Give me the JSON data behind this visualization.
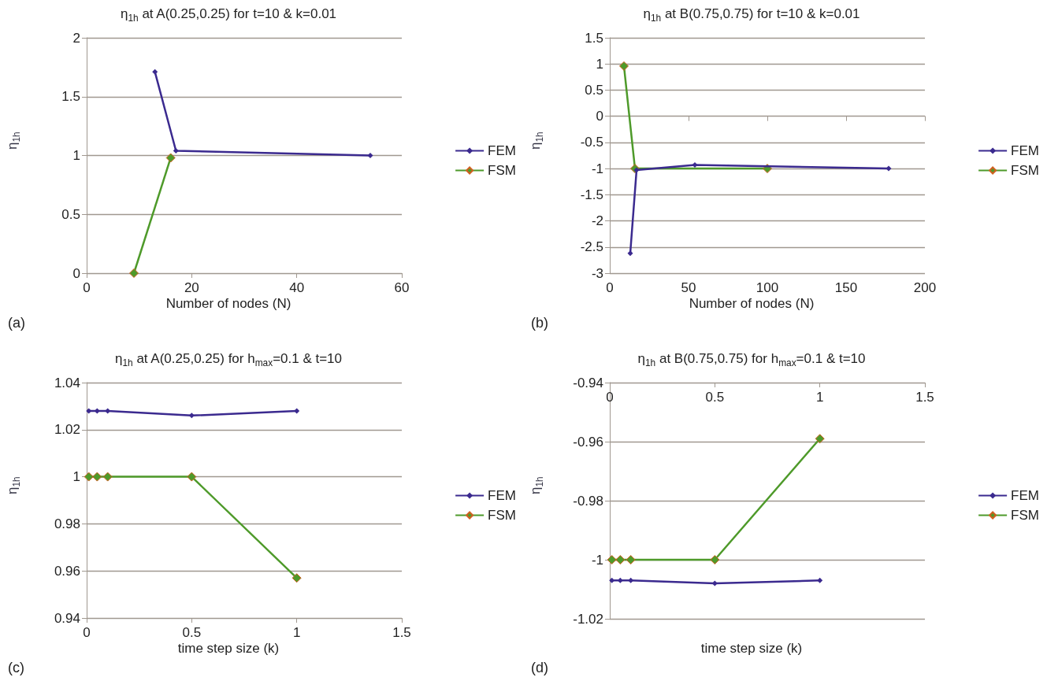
{
  "chart_data": [
    {
      "type": "line",
      "title": "η$_{1h}$ at A(0.25,0.25) for t=10 & k=0.01",
      "xlabel": "Number of nodes (N)",
      "ylabel": "η$_{1h}$",
      "annotations": [
        "(a)"
      ],
      "xlim": [
        0,
        60
      ],
      "xticks": [
        0,
        20,
        40,
        60
      ],
      "ylim": [
        0,
        2
      ],
      "yticks": [
        0,
        0.5,
        1,
        1.5,
        2
      ],
      "grid": "y",
      "legend": "right",
      "marker": "diamond",
      "series": [
        {
          "name": "FEM",
          "color": "#3b2a8f",
          "x": [
            13,
            17,
            54
          ],
          "values": [
            1.71,
            1.04,
            1.0
          ]
        },
        {
          "name": "FSM",
          "color": "#4e9a2a",
          "x": [
            9,
            16
          ],
          "values": [
            0,
            0.98
          ]
        }
      ]
    },
    {
      "type": "line",
      "title": "η$_{1h}$ at B(0.75,0.75) for t=10 & k=0.01",
      "xlabel": "Number of nodes (N)",
      "ylabel": "η$_{1h}$",
      "annotations": [
        "(b)"
      ],
      "xlim": [
        0,
        200
      ],
      "xticks": [
        0,
        50,
        100,
        150,
        200
      ],
      "ylim": [
        -3,
        1.5
      ],
      "yticks": [
        -3,
        -2.5,
        -2,
        -1.5,
        -1,
        -0.5,
        0,
        0.5,
        1,
        1.5
      ],
      "grid": "y",
      "legend": "right",
      "marker": "diamond",
      "series": [
        {
          "name": "FEM",
          "color": "#3b2a8f",
          "x": [
            13,
            17,
            54,
            177
          ],
          "values": [
            -2.62,
            -1.03,
            -0.93,
            -1.0
          ]
        },
        {
          "name": "FSM",
          "color": "#4e9a2a",
          "x": [
            9,
            16,
            100
          ],
          "values": [
            0.96,
            -1.0,
            -1.0
          ]
        }
      ]
    },
    {
      "type": "line",
      "title": "η$_{1h}$ at A(0.25,0.25) for h$_{max}$=0.1 & t=10",
      "xlabel": "time step size (k)",
      "ylabel": "η$_{1h}$",
      "annotations": [
        "(c)"
      ],
      "xlim": [
        0,
        1.5
      ],
      "xticks": [
        0,
        0.5,
        1,
        1.5
      ],
      "ylim": [
        0.94,
        1.04
      ],
      "yticks": [
        0.94,
        0.96,
        0.98,
        1,
        1.02,
        1.04
      ],
      "grid": "y",
      "legend": "right",
      "marker": "diamond",
      "series": [
        {
          "name": "FEM",
          "color": "#3b2a8f",
          "x": [
            0.01,
            0.05,
            0.1,
            0.5,
            1
          ],
          "values": [
            1.028,
            1.028,
            1.028,
            1.026,
            1.028
          ]
        },
        {
          "name": "FSM",
          "color": "#4e9a2a",
          "x": [
            0.01,
            0.05,
            0.1,
            0.5,
            1
          ],
          "values": [
            1.0,
            1.0,
            1.0,
            1.0,
            0.957
          ]
        }
      ]
    },
    {
      "type": "line",
      "title": "η$_{1h}$ at B(0.75,0.75) for h$_{max}$=0.1 & t=10",
      "xlabel": "time step size (k)",
      "ylabel": "η$_{1h}$",
      "annotations": [
        "(d)"
      ],
      "xlim": [
        0,
        1.5
      ],
      "xticks": [
        0,
        0.5,
        1,
        1.5
      ],
      "ylim": [
        -1.02,
        -0.94
      ],
      "yticks": [
        -1.02,
        -1,
        -0.98,
        -0.96,
        -0.94
      ],
      "grid": "y",
      "legend": "right",
      "marker": "diamond",
      "series": [
        {
          "name": "FEM",
          "color": "#3b2a8f",
          "x": [
            0.01,
            0.05,
            0.1,
            0.5,
            1
          ],
          "values": [
            -1.007,
            -1.007,
            -1.007,
            -1.008,
            -1.007
          ]
        },
        {
          "name": "FSM",
          "color": "#4e9a2a",
          "x": [
            0.01,
            0.05,
            0.1,
            0.5,
            1
          ],
          "values": [
            -1.0,
            -1.0,
            -1.0,
            -1.0,
            -0.959
          ]
        }
      ]
    }
  ]
}
